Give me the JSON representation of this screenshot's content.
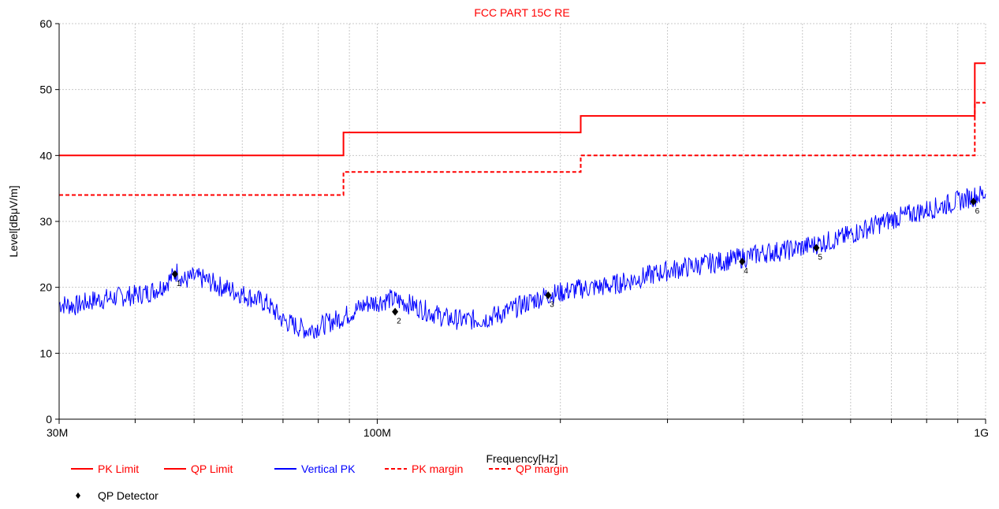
{
  "chart_data": {
    "type": "line",
    "title": "FCC PART 15C RE",
    "xlabel": "Frequency[Hz]",
    "ylabel": "Level[dBμV/m]",
    "x_scale": "log",
    "xlim": [
      30,
      1000
    ],
    "ylim": [
      0,
      60
    ],
    "y_ticks": [
      0,
      10,
      20,
      30,
      40,
      50,
      60
    ],
    "x_tick_labels": [
      {
        "value": 30,
        "label": "30M"
      },
      {
        "value": 100,
        "label": "100M"
      },
      {
        "value": 1000,
        "label": "1G"
      }
    ],
    "x_minor_gridlines": [
      40,
      50,
      60,
      70,
      80,
      90,
      200,
      300,
      400,
      500,
      600,
      700,
      800,
      900
    ],
    "grid": true,
    "legend_position": "bottom",
    "series": [
      {
        "name": "PK Limit",
        "color": "#ff0000",
        "style": "solid",
        "points": [
          [
            30,
            40
          ],
          [
            88,
            40
          ],
          [
            88,
            43.5
          ],
          [
            216,
            43.5
          ],
          [
            216,
            46
          ],
          [
            960,
            46
          ],
          [
            960,
            54
          ],
          [
            1000,
            54
          ]
        ]
      },
      {
        "name": "QP Limit",
        "color": "#ff0000",
        "style": "solid",
        "points": []
      },
      {
        "name": "Vertical PK",
        "color": "#0000ff",
        "style": "solid",
        "points": [
          [
            30,
            17.5
          ],
          [
            32,
            17.2
          ],
          [
            34,
            18
          ],
          [
            36,
            18.3
          ],
          [
            38,
            18.6
          ],
          [
            40,
            18.8
          ],
          [
            42,
            19.2
          ],
          [
            44,
            20
          ],
          [
            46,
            21.5
          ],
          [
            47,
            22.5
          ],
          [
            48,
            21
          ],
          [
            50,
            21.5
          ],
          [
            52,
            21.2
          ],
          [
            55,
            20.2
          ],
          [
            58,
            19.5
          ],
          [
            62,
            18.5
          ],
          [
            66,
            17.5
          ],
          [
            70,
            15
          ],
          [
            74,
            14
          ],
          [
            77,
            13.5
          ],
          [
            80,
            14
          ],
          [
            84,
            14.8
          ],
          [
            88,
            15.5
          ],
          [
            92,
            16.5
          ],
          [
            96,
            17.5
          ],
          [
            100,
            17.8
          ],
          [
            105,
            18.2
          ],
          [
            110,
            17.8
          ],
          [
            115,
            17.2
          ],
          [
            120,
            16.5
          ],
          [
            130,
            15.3
          ],
          [
            140,
            15
          ],
          [
            150,
            15.2
          ],
          [
            160,
            16
          ],
          [
            170,
            17
          ],
          [
            180,
            18
          ],
          [
            190,
            18.8
          ],
          [
            200,
            19.2
          ],
          [
            216,
            19.8
          ],
          [
            240,
            20.2
          ],
          [
            260,
            21
          ],
          [
            280,
            21.8
          ],
          [
            300,
            22.5
          ],
          [
            330,
            23.2
          ],
          [
            360,
            23.8
          ],
          [
            400,
            24.5
          ],
          [
            430,
            25.2
          ],
          [
            470,
            25.6
          ],
          [
            520,
            26.4
          ],
          [
            580,
            27.5
          ],
          [
            640,
            29
          ],
          [
            700,
            30.3
          ],
          [
            760,
            31.2
          ],
          [
            820,
            32
          ],
          [
            880,
            32.8
          ],
          [
            940,
            33.6
          ],
          [
            1000,
            34.2
          ]
        ]
      },
      {
        "name": "PK margin",
        "color": "#ff0000",
        "style": "dashed",
        "points": [
          [
            30,
            34
          ],
          [
            88,
            34
          ],
          [
            88,
            37.5
          ],
          [
            216,
            37.5
          ],
          [
            216,
            40
          ],
          [
            960,
            40
          ],
          [
            960,
            48
          ],
          [
            1000,
            48
          ]
        ]
      },
      {
        "name": "QP margin",
        "color": "#ff0000",
        "style": "dashed",
        "points": []
      },
      {
        "name": "QP Detector",
        "color": "#000000",
        "style": "marker",
        "points": [
          {
            "x": 46.5,
            "y": 22,
            "label": "1"
          },
          {
            "x": 107,
            "y": 16.3,
            "label": "2"
          },
          {
            "x": 191,
            "y": 18.8,
            "label": "3"
          },
          {
            "x": 398,
            "y": 23.9,
            "label": "4"
          },
          {
            "x": 527,
            "y": 26,
            "label": "5"
          },
          {
            "x": 955,
            "y": 33,
            "label": "6"
          }
        ]
      }
    ]
  }
}
